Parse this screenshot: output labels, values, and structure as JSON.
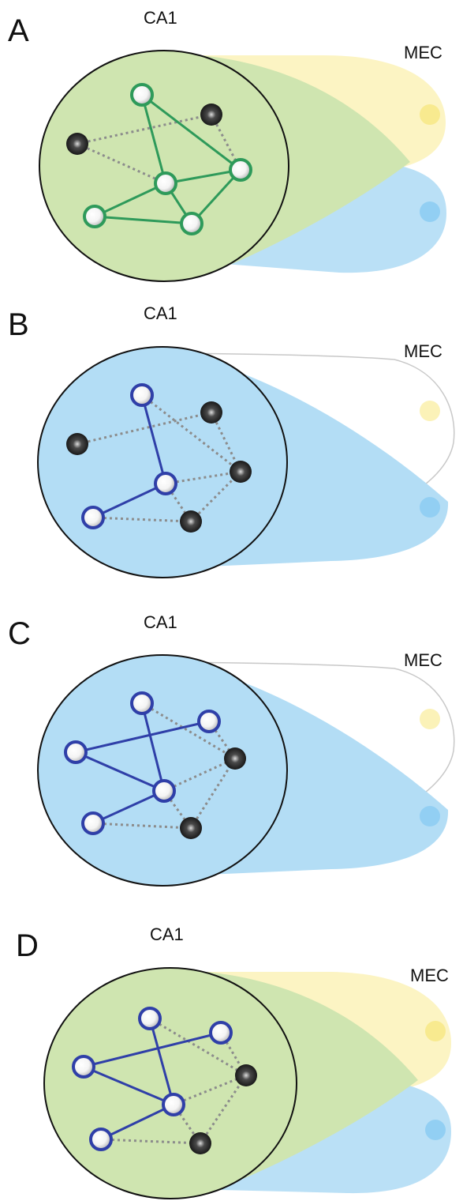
{
  "colors": {
    "green_fill": "#cfe5b0",
    "blue_fill": "#b3ddf5",
    "yellow_fill": "#fbf2b8",
    "green_edge": "#2e9a5a",
    "blue_edge": "#2f3fa8",
    "dashed_edge": "#8c8c8c",
    "inactive_node": "#1a1a1a",
    "active_node": "#ffffff"
  },
  "panels": [
    {
      "letter": "A",
      "ca1_label": "CA1",
      "mec_label": "MEC",
      "ca1_fill": "green",
      "yellow_input_active": true,
      "blue_input_active": true,
      "edge_color": "green",
      "active_nodes": 5,
      "inactive_nodes": 2
    },
    {
      "letter": "B",
      "ca1_label": "CA1",
      "mec_label": "MEC",
      "ca1_fill": "blue",
      "yellow_input_active": false,
      "blue_input_active": true,
      "edge_color": "blue",
      "active_nodes": 3,
      "inactive_nodes": 4
    },
    {
      "letter": "C",
      "ca1_label": "CA1",
      "mec_label": "MEC",
      "ca1_fill": "blue",
      "yellow_input_active": false,
      "blue_input_active": true,
      "edge_color": "blue",
      "active_nodes": 5,
      "inactive_nodes": 2
    },
    {
      "letter": "D",
      "ca1_label": "CA1",
      "mec_label": "MEC",
      "ca1_fill": "green",
      "yellow_input_active": true,
      "blue_input_active": true,
      "edge_color": "blue",
      "active_nodes": 5,
      "inactive_nodes": 2
    }
  ]
}
